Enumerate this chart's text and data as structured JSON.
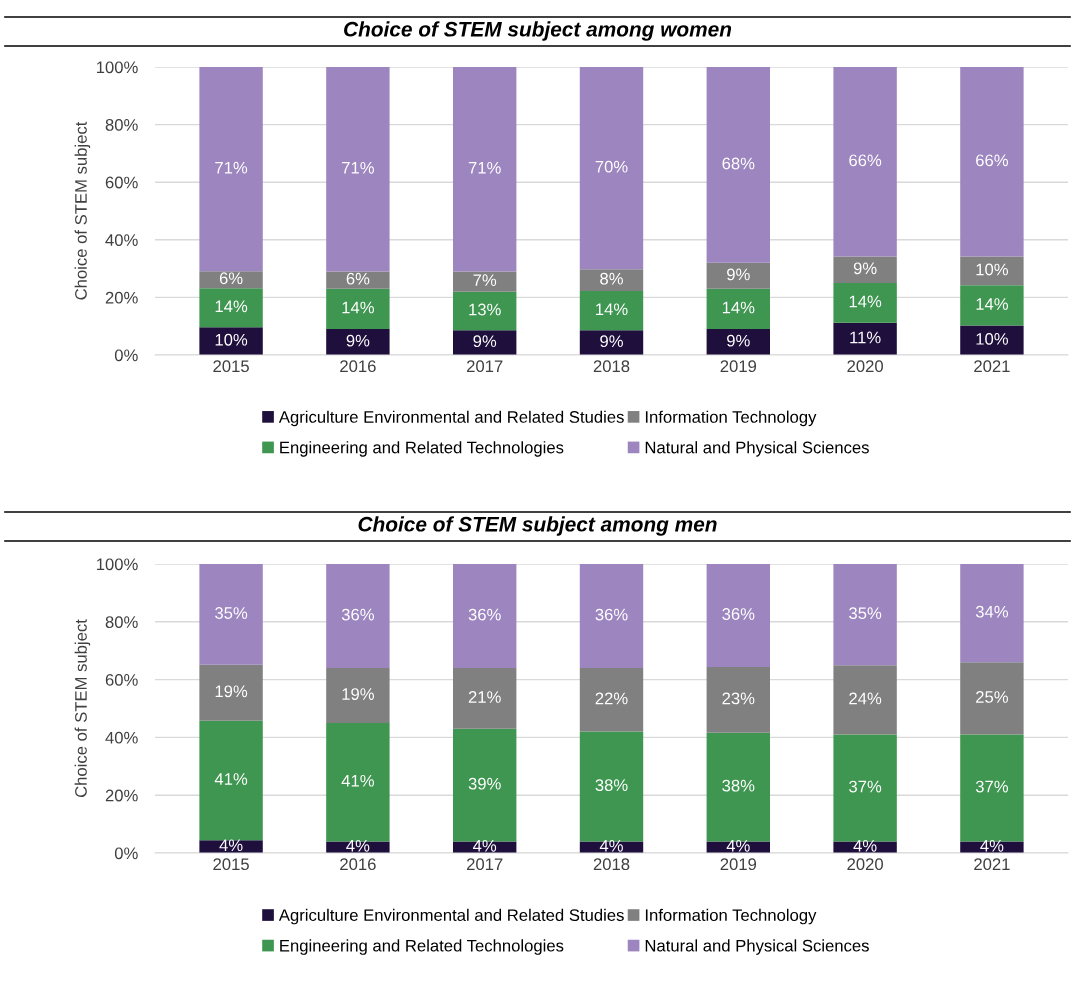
{
  "chart_data": [
    {
      "type": "bar",
      "stacked": true,
      "title": "Choice of STEM subject among women",
      "ylabel": "Choice of STEM subject",
      "categories": [
        "2015",
        "2016",
        "2017",
        "2018",
        "2019",
        "2020",
        "2021"
      ],
      "series": [
        {
          "name": "Agriculture Environmental and Related Studies",
          "color": "#1f0f3d",
          "values": [
            9.6,
            9,
            8.6,
            8.6,
            9,
            11.2,
            10.2
          ],
          "value_labels": [
            "10%",
            "9%",
            "9%",
            "9%",
            "9%",
            "11%",
            "10%"
          ]
        },
        {
          "name": "Engineering and Related Technologies",
          "color": "#3e9651",
          "values": [
            13.6,
            14,
            13.4,
            13.6,
            14,
            13.8,
            14
          ],
          "value_labels": [
            "14%",
            "14%",
            "13%",
            "14%",
            "14%",
            "14%",
            "14%"
          ]
        },
        {
          "name": "Information Technology",
          "color": "#808080",
          "values": [
            5.9,
            6,
            7,
            7.6,
            9,
            9.2,
            10
          ],
          "value_labels": [
            "6%",
            "6%",
            "7%",
            "8%",
            "9%",
            "9%",
            "10%"
          ]
        },
        {
          "name": "Natural and Physical Sciences",
          "color": "#9d86bf",
          "values": [
            70.9,
            71,
            71,
            70.2,
            68,
            65.8,
            65.8
          ],
          "value_labels": [
            "71%",
            "71%",
            "71%",
            "70%",
            "68%",
            "66%",
            "66%"
          ]
        }
      ],
      "ylim": [
        0,
        100
      ],
      "yticks": [
        {
          "value": 0,
          "label": "0%"
        },
        {
          "value": 20,
          "label": "20%"
        },
        {
          "value": 40,
          "label": "40%"
        },
        {
          "value": 60,
          "label": "60%"
        },
        {
          "value": 80,
          "label": "80%"
        },
        {
          "value": 100,
          "label": "100%"
        }
      ],
      "grid": "y",
      "legend": "bottom"
    },
    {
      "type": "bar",
      "stacked": true,
      "title": "Choice of STEM subject among men",
      "ylabel": "Choice of STEM subject",
      "categories": [
        "2015",
        "2016",
        "2017",
        "2018",
        "2019",
        "2020",
        "2021"
      ],
      "series": [
        {
          "name": "Agriculture Environmental and Related Studies",
          "color": "#1f0f3d",
          "values": [
            4.4,
            4,
            4,
            4,
            4,
            4,
            4
          ],
          "value_labels": [
            "4%",
            "4%",
            "4%",
            "4%",
            "4%",
            "4%",
            "4%"
          ]
        },
        {
          "name": "Engineering and Related Technologies",
          "color": "#3e9651",
          "values": [
            41.4,
            41,
            39,
            38,
            37.6,
            37,
            37
          ],
          "value_labels": [
            "41%",
            "41%",
            "39%",
            "38%",
            "38%",
            "37%",
            "37%"
          ]
        },
        {
          "name": "Information Technology",
          "color": "#808080",
          "values": [
            19.3,
            19,
            21,
            22,
            22.8,
            24,
            25
          ],
          "value_labels": [
            "19%",
            "19%",
            "21%",
            "22%",
            "23%",
            "24%",
            "25%"
          ]
        },
        {
          "name": "Natural and Physical Sciences",
          "color": "#9d86bf",
          "values": [
            34.9,
            36,
            36,
            36,
            35.6,
            35,
            34
          ],
          "value_labels": [
            "35%",
            "36%",
            "36%",
            "36%",
            "36%",
            "35%",
            "34%"
          ]
        }
      ],
      "ylim": [
        0,
        100
      ],
      "yticks": [
        {
          "value": 0,
          "label": "0%"
        },
        {
          "value": 20,
          "label": "20%"
        },
        {
          "value": 40,
          "label": "40%"
        },
        {
          "value": 60,
          "label": "60%"
        },
        {
          "value": 80,
          "label": "80%"
        },
        {
          "value": 100,
          "label": "100%"
        }
      ],
      "grid": "y",
      "legend": "bottom"
    }
  ]
}
